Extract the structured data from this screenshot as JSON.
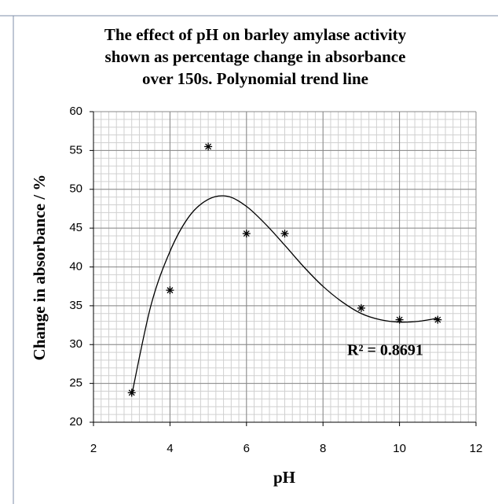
{
  "chart_data": {
    "type": "scatter",
    "title": [
      "The effect of pH on barley amylase activity",
      "shown as percentage change in absorbance",
      "over 150s.  Polynomial trend line"
    ],
    "x_label": "pH",
    "y_label": "Change in absorbance / %",
    "annotation": "R² = 0.8691",
    "x": [
      3,
      4,
      5,
      6,
      7,
      9,
      10,
      11
    ],
    "values": [
      23.8,
      37,
      55.5,
      44.3,
      44.3,
      34.7,
      33.2,
      33.2
    ],
    "color": "#000000",
    "trendline": {
      "x": [
        3,
        3.5,
        4,
        4.5,
        5,
        5.5,
        6,
        6.5,
        7,
        7.5,
        8,
        8.5,
        9,
        9.5,
        10,
        10.5,
        11
      ],
      "y": [
        23.5,
        35,
        42,
        46.5,
        48.7,
        49.1,
        47.8,
        45.5,
        42.8,
        40,
        37.5,
        35.5,
        34,
        33.2,
        32.9,
        33,
        33.4
      ]
    },
    "xlim": [
      2,
      12
    ],
    "xticks": [
      2,
      4,
      6,
      8,
      10,
      12
    ],
    "ylim": [
      20,
      60
    ],
    "yticks": [
      20,
      25,
      30,
      35,
      40,
      45,
      50,
      55,
      60
    ],
    "grid": true,
    "x_minor_step": 0.2,
    "y_minor_step": 1
  }
}
